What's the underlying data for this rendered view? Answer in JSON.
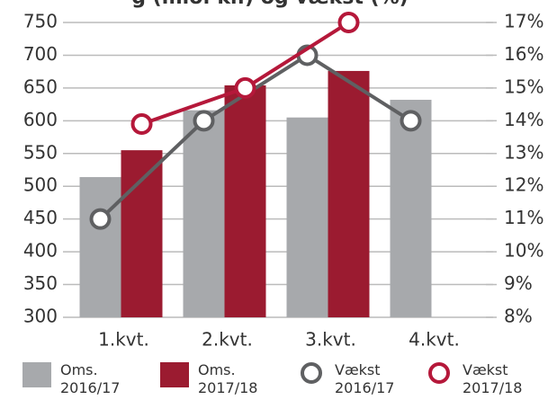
{
  "chart_data": {
    "type": "bar-line",
    "title": "g (mio. kr.) og vækst (%)",
    "categories": [
      "1.kvt.",
      "2.kvt.",
      "3.kvt.",
      "4.kvt."
    ],
    "series": [
      {
        "name": "Oms. 2016/17",
        "color": "#a7a9ac",
        "kind": "bar",
        "values": [
          514,
          616,
          605,
          632
        ]
      },
      {
        "name": "Oms. 2017/18",
        "color": "#9b1b30",
        "kind": "bar",
        "values": [
          555,
          654,
          676,
          null
        ]
      },
      {
        "name": "Vækst 2016/17",
        "color": "#5f6062",
        "kind": "line",
        "axis": "y2",
        "values": [
          11,
          14,
          16,
          14
        ]
      },
      {
        "name": "Vækst 2017/18",
        "color": "#b5183a",
        "kind": "line",
        "axis": "y2",
        "values": [
          13.9,
          15,
          17,
          null
        ]
      }
    ],
    "ylim": [
      300,
      750
    ],
    "yticks": [
      300,
      350,
      400,
      450,
      500,
      550,
      600,
      650,
      700,
      750
    ],
    "y2lim": [
      8,
      17
    ],
    "y2ticks": [
      {
        "value": 8,
        "label": "8%"
      },
      {
        "value": 9,
        "label": "9%"
      },
      {
        "value": 10,
        "label": "10%"
      },
      {
        "value": 11,
        "label": "11%"
      },
      {
        "value": 12,
        "label": "12%"
      },
      {
        "value": 13,
        "label": "13%"
      },
      {
        "value": 14,
        "label": "14%"
      },
      {
        "value": 15,
        "label": "15%"
      },
      {
        "value": 16,
        "label": "16%"
      },
      {
        "value": 17,
        "label": "17%"
      }
    ],
    "grid": true
  }
}
